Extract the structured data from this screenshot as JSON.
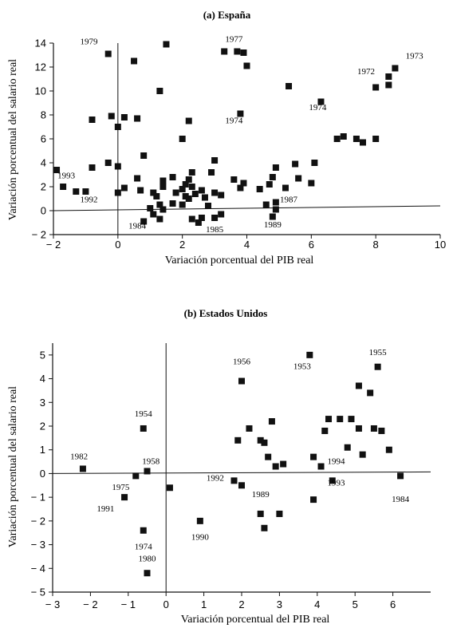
{
  "chart_data": [
    {
      "type": "scatter",
      "title": "(a) España",
      "xlabel": "Variación porcentual del PIB real",
      "ylabel": "Variación porcentual del salario real",
      "xlim": [
        -2,
        10
      ],
      "ylim": [
        -2,
        14
      ],
      "xticks": [
        -2,
        0,
        2,
        4,
        6,
        8,
        10
      ],
      "yticks": [
        -2,
        0,
        2,
        4,
        6,
        8,
        10,
        12,
        14
      ],
      "grid": false,
      "points": [
        [
          -0.3,
          13.1
        ],
        [
          0.5,
          12.5
        ],
        [
          1.5,
          13.9
        ],
        [
          3.3,
          13.3
        ],
        [
          3.7,
          13.3
        ],
        [
          3.9,
          13.2
        ],
        [
          4.0,
          12.1
        ],
        [
          1.3,
          10.0
        ],
        [
          3.8,
          8.1
        ],
        [
          5.3,
          10.4
        ],
        [
          6.3,
          9.1
        ],
        [
          8.0,
          10.3
        ],
        [
          8.4,
          11.2
        ],
        [
          8.6,
          11.9
        ],
        [
          8.4,
          10.5
        ],
        [
          -0.8,
          7.6
        ],
        [
          -0.2,
          7.9
        ],
        [
          0.2,
          7.8
        ],
        [
          0.6,
          7.7
        ],
        [
          0.0,
          7.0
        ],
        [
          2.2,
          7.5
        ],
        [
          2.0,
          6.0
        ],
        [
          6.8,
          6.0
        ],
        [
          7.0,
          6.2
        ],
        [
          7.4,
          6.0
        ],
        [
          7.6,
          5.7
        ],
        [
          8.0,
          6.0
        ],
        [
          -0.3,
          4.0
        ],
        [
          0.8,
          4.6
        ],
        [
          3.0,
          4.2
        ],
        [
          4.9,
          3.6
        ],
        [
          5.5,
          3.9
        ],
        [
          6.1,
          4.0
        ],
        [
          -1.9,
          3.4
        ],
        [
          -1.7,
          2.0
        ],
        [
          -1.3,
          1.6
        ],
        [
          -1.0,
          1.6
        ],
        [
          -0.8,
          3.6
        ],
        [
          0.0,
          3.7
        ],
        [
          0.0,
          1.5
        ],
        [
          0.2,
          1.9
        ],
        [
          0.6,
          2.7
        ],
        [
          0.7,
          1.7
        ],
        [
          1.1,
          1.5
        ],
        [
          1.4,
          2.5
        ],
        [
          1.4,
          2.0
        ],
        [
          1.7,
          2.8
        ],
        [
          1.8,
          1.5
        ],
        [
          2.0,
          1.8
        ],
        [
          2.1,
          2.2
        ],
        [
          2.2,
          2.6
        ],
        [
          2.3,
          3.2
        ],
        [
          2.3,
          2.0
        ],
        [
          2.4,
          1.4
        ],
        [
          2.6,
          1.7
        ],
        [
          2.7,
          1.1
        ],
        [
          2.2,
          1.0
        ],
        [
          2.0,
          0.5
        ],
        [
          2.1,
          1.2
        ],
        [
          1.7,
          0.6
        ],
        [
          1.3,
          0.5
        ],
        [
          1.2,
          1.2
        ],
        [
          1.4,
          0.1
        ],
        [
          2.9,
          3.2
        ],
        [
          3.0,
          1.5
        ],
        [
          3.2,
          1.3
        ],
        [
          3.6,
          2.6
        ],
        [
          3.9,
          2.3
        ],
        [
          3.8,
          1.9
        ],
        [
          4.4,
          1.8
        ],
        [
          4.7,
          2.2
        ],
        [
          4.8,
          2.8
        ],
        [
          5.2,
          1.9
        ],
        [
          5.6,
          2.7
        ],
        [
          6.0,
          2.3
        ],
        [
          4.9,
          0.7
        ],
        [
          1.0,
          0.2
        ],
        [
          1.1,
          -0.3
        ],
        [
          0.8,
          -0.9
        ],
        [
          1.3,
          -0.7
        ],
        [
          2.6,
          -0.6
        ],
        [
          2.3,
          -0.7
        ],
        [
          2.5,
          -1.0
        ],
        [
          2.8,
          0.4
        ],
        [
          3.0,
          -0.6
        ],
        [
          3.2,
          -0.3
        ],
        [
          4.6,
          0.5
        ],
        [
          4.9,
          0.1
        ],
        [
          4.8,
          -0.5
        ]
      ],
      "annotations": [
        {
          "text": "1979",
          "x": -0.9,
          "y": 13.9
        },
        {
          "text": "1977",
          "x": 3.6,
          "y": 14.1
        },
        {
          "text": "1973",
          "x": 9.2,
          "y": 12.7
        },
        {
          "text": "1972",
          "x": 7.7,
          "y": 11.4
        },
        {
          "text": "1974",
          "x": 6.2,
          "y": 8.4
        },
        {
          "text": "1974",
          "x": 3.6,
          "y": 7.3
        },
        {
          "text": "1993",
          "x": -1.6,
          "y": 2.7
        },
        {
          "text": "1992",
          "x": -0.9,
          "y": 0.7
        },
        {
          "text": "1984",
          "x": 0.6,
          "y": -1.5
        },
        {
          "text": "1985",
          "x": 3.0,
          "y": -1.8
        },
        {
          "text": "1989",
          "x": 4.8,
          "y": -1.4
        },
        {
          "text": "1987",
          "x": 5.3,
          "y": 0.7
        }
      ]
    },
    {
      "type": "scatter",
      "title": "(b) Estados Unidos",
      "xlabel": "Variación porcentual del PIB real",
      "ylabel": "Variación porcentual del salario real",
      "xlim": [
        -3,
        7
      ],
      "ylim": [
        -5,
        5.5
      ],
      "xticks": [
        -3,
        -2,
        -1,
        0,
        1,
        2,
        3,
        4,
        5,
        6
      ],
      "yticks": [
        -5,
        -4,
        -3,
        -2,
        -1,
        0,
        1,
        2,
        3,
        4,
        5
      ],
      "grid": false,
      "points": [
        [
          -2.2,
          0.2
        ],
        [
          -1.1,
          -1.0
        ],
        [
          -0.8,
          -0.1
        ],
        [
          -0.6,
          1.9
        ],
        [
          -0.5,
          0.1
        ],
        [
          -0.6,
          -2.4
        ],
        [
          -0.5,
          -4.2
        ],
        [
          0.1,
          -0.6
        ],
        [
          0.9,
          -2.0
        ],
        [
          1.8,
          -0.3
        ],
        [
          2.0,
          -0.5
        ],
        [
          1.9,
          1.4
        ],
        [
          2.2,
          1.9
        ],
        [
          2.0,
          3.9
        ],
        [
          2.5,
          1.4
        ],
        [
          2.6,
          1.3
        ],
        [
          2.8,
          2.2
        ],
        [
          2.7,
          0.7
        ],
        [
          2.9,
          0.3
        ],
        [
          3.1,
          0.4
        ],
        [
          2.5,
          -1.7
        ],
        [
          2.6,
          -2.3
        ],
        [
          3.0,
          -1.7
        ],
        [
          3.8,
          5.0
        ],
        [
          3.9,
          0.7
        ],
        [
          4.1,
          0.3
        ],
        [
          3.9,
          -1.1
        ],
        [
          4.4,
          -0.3
        ],
        [
          4.2,
          1.8
        ],
        [
          4.3,
          2.3
        ],
        [
          4.6,
          2.3
        ],
        [
          4.8,
          1.1
        ],
        [
          4.9,
          2.3
        ],
        [
          5.1,
          1.9
        ],
        [
          5.1,
          3.7
        ],
        [
          5.2,
          0.8
        ],
        [
          5.4,
          3.4
        ],
        [
          5.5,
          1.9
        ],
        [
          5.6,
          4.5
        ],
        [
          5.7,
          1.8
        ],
        [
          5.9,
          1.0
        ],
        [
          6.2,
          -0.1
        ]
      ],
      "annotations": [
        {
          "text": "1982",
          "x": -2.3,
          "y": 0.6
        },
        {
          "text": "1958",
          "x": -0.4,
          "y": 0.4
        },
        {
          "text": "1975",
          "x": -1.2,
          "y": -0.7
        },
        {
          "text": "1991",
          "x": -1.6,
          "y": -1.6
        },
        {
          "text": "1954",
          "x": -0.6,
          "y": 2.4
        },
        {
          "text": "1974",
          "x": -0.6,
          "y": -3.2
        },
        {
          "text": "1980",
          "x": -0.5,
          "y": -3.7
        },
        {
          "text": "1990",
          "x": 0.9,
          "y": -2.8
        },
        {
          "text": "1992",
          "x": 1.3,
          "y": -0.3
        },
        {
          "text": "1956",
          "x": 2.0,
          "y": 4.6
        },
        {
          "text": "1953",
          "x": 3.6,
          "y": 4.4
        },
        {
          "text": "1955",
          "x": 5.6,
          "y": 5.0
        },
        {
          "text": "1989",
          "x": 2.5,
          "y": -1.0
        },
        {
          "text": "1994",
          "x": 4.5,
          "y": 0.4
        },
        {
          "text": "1993",
          "x": 4.5,
          "y": -0.5
        },
        {
          "text": "1984",
          "x": 6.2,
          "y": -1.2
        }
      ]
    }
  ]
}
